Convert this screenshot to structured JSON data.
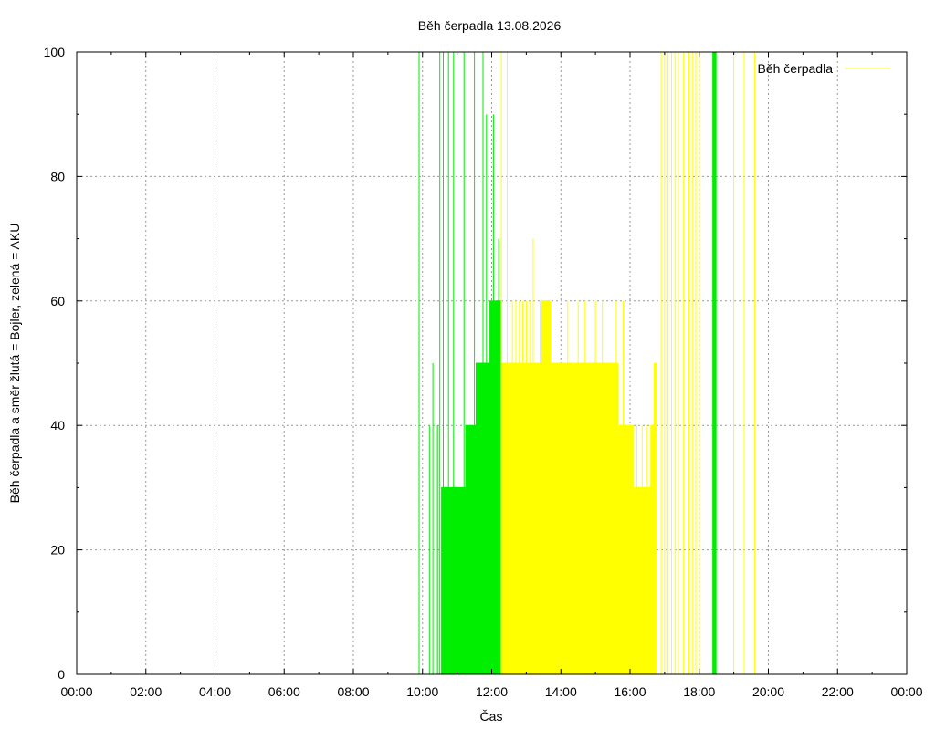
{
  "chart_data": {
    "type": "area",
    "title": "Běh čerpadla 13.08.2026",
    "xlabel": "Čas",
    "ylabel": "Běh čerpadla a směr žlutá = Bojler, zelená = AKU",
    "x_unit": "hours",
    "xlim": [
      0,
      24
    ],
    "ylim": [
      0,
      100
    ],
    "x_ticks": [
      {
        "value": 0,
        "label": "00:00"
      },
      {
        "value": 2,
        "label": "02:00"
      },
      {
        "value": 4,
        "label": "04:00"
      },
      {
        "value": 6,
        "label": "06:00"
      },
      {
        "value": 8,
        "label": "08:00"
      },
      {
        "value": 10,
        "label": "10:00"
      },
      {
        "value": 12,
        "label": "12:00"
      },
      {
        "value": 14,
        "label": "14:00"
      },
      {
        "value": 16,
        "label": "16:00"
      },
      {
        "value": 18,
        "label": "18:00"
      },
      {
        "value": 20,
        "label": "20:00"
      },
      {
        "value": 22,
        "label": "22:00"
      },
      {
        "value": 24,
        "label": "00:00"
      }
    ],
    "y_ticks": [
      0,
      20,
      40,
      60,
      80,
      100
    ],
    "grid": true,
    "legend": {
      "position": "top-right",
      "entries": [
        {
          "name": "Běh čerpadla",
          "color": "#ffff00"
        }
      ]
    },
    "series": [
      {
        "name": "Běh čerpadla",
        "color": "#ffff00",
        "mode": "spikes",
        "points": [
          [
            12.28,
            100
          ],
          [
            12.45,
            100
          ],
          [
            16.9,
            100
          ],
          [
            17.0,
            100
          ],
          [
            17.1,
            100
          ],
          [
            17.2,
            100
          ],
          [
            17.3,
            100
          ],
          [
            17.4,
            100
          ],
          [
            17.55,
            100
          ],
          [
            17.7,
            100
          ],
          [
            17.8,
            100
          ],
          [
            17.9,
            100
          ],
          [
            18.0,
            100
          ],
          [
            19.0,
            100
          ],
          [
            19.3,
            100
          ],
          [
            19.6,
            100
          ],
          [
            12.6,
            60
          ],
          [
            12.7,
            60
          ],
          [
            12.8,
            60
          ],
          [
            12.9,
            60
          ],
          [
            13.0,
            60
          ],
          [
            13.1,
            60
          ],
          [
            13.2,
            70
          ],
          [
            13.4,
            60
          ],
          [
            14.2,
            60
          ],
          [
            14.35,
            60
          ],
          [
            14.5,
            60
          ],
          [
            14.7,
            60
          ],
          [
            15.0,
            60
          ],
          [
            15.2,
            60
          ],
          [
            15.6,
            60
          ],
          [
            15.8,
            60
          ],
          [
            16.2,
            40
          ],
          [
            16.35,
            40
          ],
          [
            16.5,
            40
          ],
          [
            16.7,
            50
          ]
        ]
      },
      {
        "name": "",
        "color": "#ffff00",
        "mode": "fill",
        "points": [
          [
            12.3,
            0
          ],
          [
            12.3,
            50
          ],
          [
            13.45,
            50
          ],
          [
            13.45,
            60
          ],
          [
            13.7,
            60
          ],
          [
            13.7,
            50
          ],
          [
            15.65,
            50
          ],
          [
            15.65,
            40
          ],
          [
            16.1,
            40
          ],
          [
            16.1,
            30
          ],
          [
            16.6,
            30
          ],
          [
            16.6,
            40
          ],
          [
            16.7,
            40
          ],
          [
            16.7,
            50
          ],
          [
            16.75,
            50
          ],
          [
            16.75,
            0
          ]
        ]
      },
      {
        "name": "",
        "color": "#00ee00",
        "mode": "fill",
        "points": [
          [
            10.55,
            0
          ],
          [
            10.55,
            30
          ],
          [
            11.25,
            30
          ],
          [
            11.25,
            40
          ],
          [
            11.55,
            40
          ],
          [
            11.55,
            50
          ],
          [
            11.95,
            50
          ],
          [
            11.95,
            60
          ],
          [
            12.25,
            60
          ],
          [
            12.25,
            0
          ]
        ]
      },
      {
        "name": "",
        "color": "#00ee00",
        "mode": "spikes",
        "points": [
          [
            9.9,
            100
          ],
          [
            10.2,
            40
          ],
          [
            10.3,
            50
          ],
          [
            10.5,
            100
          ],
          [
            10.6,
            100
          ],
          [
            10.75,
            100
          ],
          [
            10.9,
            100
          ],
          [
            11.2,
            100
          ],
          [
            11.5,
            100
          ],
          [
            11.75,
            100
          ],
          [
            11.85,
            90
          ],
          [
            12.05,
            90
          ],
          [
            12.2,
            70
          ],
          [
            10.4,
            40
          ],
          [
            10.45,
            40
          ]
        ]
      },
      {
        "name": "",
        "color": "#00ee00",
        "mode": "block",
        "points": [
          [
            18.38,
            100
          ],
          [
            18.5,
            100
          ]
        ]
      }
    ]
  }
}
